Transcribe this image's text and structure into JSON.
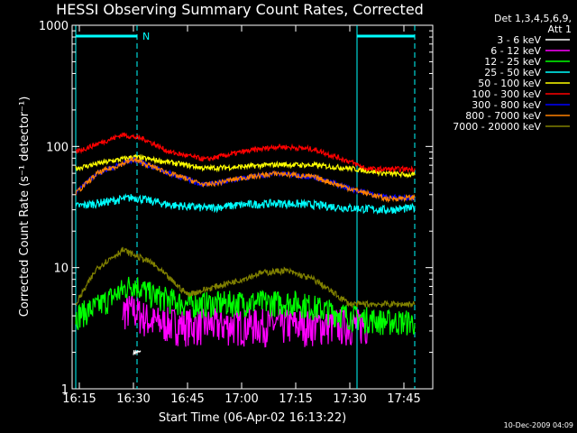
{
  "colors": {
    "background": "#000000",
    "axes": "#ffffff",
    "marker": "#00ffff"
  },
  "chart_data": {
    "type": "line",
    "title": "HESSI Observing Summary Count Rates, Corrected",
    "xlabel": "Start Time (06-Apr-02 16:13:22)",
    "ylabel": "Corrected Count Rate (s⁻¹ detector⁻¹)",
    "yscale": "log",
    "ylim": [
      1,
      1000
    ],
    "xlim": [
      "16:13",
      "17:53"
    ],
    "x_ticks": [
      "16:15",
      "16:30",
      "16:45",
      "17:00",
      "17:15",
      "17:30",
      "17:45"
    ],
    "y_ticks": [
      "1",
      "10",
      "100",
      "1000"
    ],
    "legend_header": [
      "Det 1,3,4,5,6,9,",
      "Att 1"
    ],
    "legend_position": "top-right",
    "time_stamp": "10-Dec-2009 04:09",
    "markers": {
      "flag_label": "N",
      "dashed_lines": [
        "16:31",
        "17:48"
      ],
      "solid_lines": [
        "16:14",
        "17:32"
      ],
      "flag_segments": [
        [
          "16:14",
          "16:31"
        ],
        [
          "17:32",
          "17:48"
        ]
      ]
    },
    "series": [
      {
        "name": "3 - 6 keV",
        "color": "#ffffff",
        "x": [
          "16:30",
          "16:31",
          "16:32"
        ],
        "y": [
          2.0,
          2.0,
          2.0
        ]
      },
      {
        "name": "6 - 12 keV",
        "color": "#ff00ff",
        "x": [
          "16:27",
          "16:30",
          "16:35",
          "16:45",
          "17:00",
          "17:15",
          "17:30",
          "17:35"
        ],
        "y": [
          4.5,
          4.5,
          3.6,
          3.4,
          3.4,
          3.4,
          3.4,
          3.4
        ]
      },
      {
        "name": "12 - 25 keV",
        "color": "#00ff00",
        "x": [
          "16:14",
          "16:20",
          "16:25",
          "16:30",
          "16:35",
          "16:45",
          "17:00",
          "17:15",
          "17:30",
          "17:40",
          "17:48"
        ],
        "y": [
          4.0,
          4.8,
          6.0,
          7.5,
          6.0,
          5.0,
          5.2,
          5.2,
          4.0,
          3.6,
          3.6
        ]
      },
      {
        "name": "25 - 50 keV",
        "color": "#00ffff",
        "x": [
          "16:14",
          "16:20",
          "16:30",
          "16:40",
          "16:50",
          "17:00",
          "17:10",
          "17:20",
          "17:30",
          "17:40",
          "17:48"
        ],
        "y": [
          32,
          34,
          38,
          33,
          31,
          33,
          34,
          33,
          31,
          30,
          31
        ]
      },
      {
        "name": "50 - 100 keV",
        "color": "#ffff00",
        "x": [
          "16:14",
          "16:20",
          "16:30",
          "16:40",
          "16:50",
          "17:00",
          "17:10",
          "17:20",
          "17:30",
          "17:40",
          "17:48"
        ],
        "y": [
          66,
          72,
          82,
          74,
          66,
          68,
          71,
          70,
          66,
          60,
          58
        ]
      },
      {
        "name": "100 - 300 keV",
        "color": "#ff0000",
        "x": [
          "16:14",
          "16:20",
          "16:27",
          "16:33",
          "16:40",
          "16:50",
          "17:00",
          "17:10",
          "17:20",
          "17:30",
          "17:35",
          "17:48"
        ],
        "y": [
          90,
          105,
          125,
          115,
          90,
          78,
          90,
          100,
          95,
          75,
          65,
          65
        ]
      },
      {
        "name": "300 - 800 keV",
        "color": "#0000ff",
        "x": [
          "16:14",
          "16:20",
          "16:30",
          "16:40",
          "16:50",
          "17:00",
          "17:10",
          "17:20",
          "17:30",
          "17:40",
          "17:48"
        ],
        "y": [
          42,
          60,
          78,
          60,
          48,
          55,
          60,
          56,
          45,
          38,
          38
        ]
      },
      {
        "name": "800 - 7000 keV",
        "color": "#ff8000",
        "x": [
          "16:14",
          "16:20",
          "16:30",
          "16:40",
          "16:50",
          "17:00",
          "17:10",
          "17:20",
          "17:30",
          "17:40",
          "17:48"
        ],
        "y": [
          41,
          60,
          78,
          60,
          48,
          55,
          60,
          56,
          45,
          37,
          38
        ]
      },
      {
        "name": "7000 - 20000 keV",
        "color": "#808000",
        "x": [
          "16:14",
          "16:20",
          "16:27",
          "16:35",
          "16:45",
          "17:00",
          "17:05",
          "17:12",
          "17:20",
          "17:30",
          "17:48"
        ],
        "y": [
          5,
          10,
          14,
          11,
          6,
          8,
          9,
          9.5,
          8,
          5,
          5
        ]
      }
    ]
  }
}
